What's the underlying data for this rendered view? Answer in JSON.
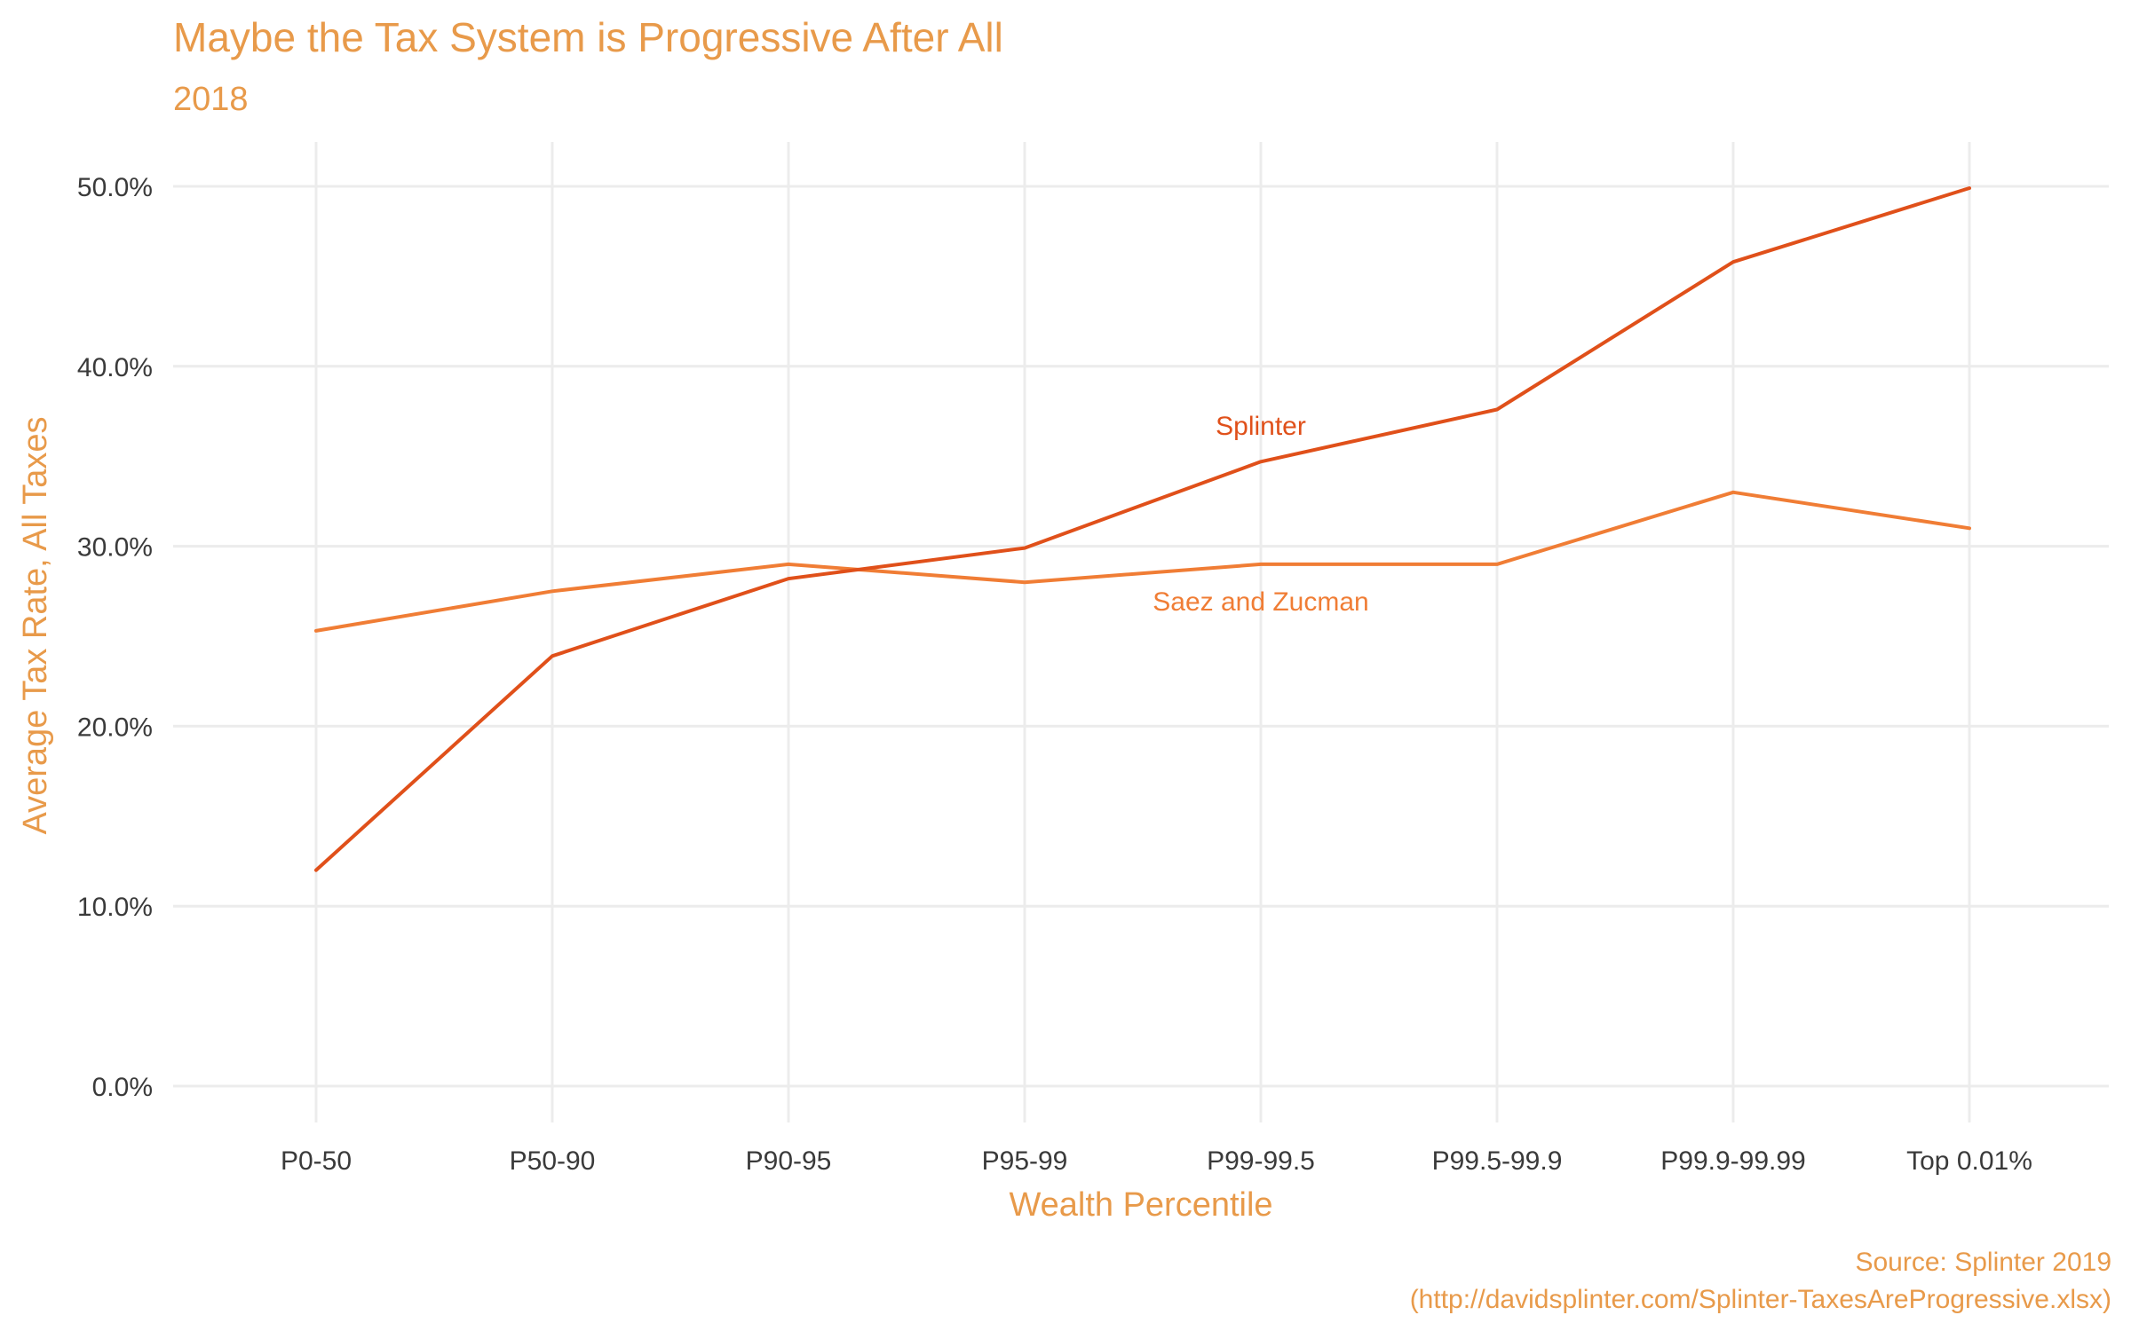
{
  "chart_data": {
    "type": "line",
    "title": "Maybe the Tax System is Progressive After All",
    "subtitle": "2018",
    "xlabel": "Wealth Percentile",
    "ylabel": "Average Tax Rate, All Taxes",
    "caption_line1": "Source: Splinter 2019",
    "caption_line2": "(http://davidsplinter.com/Splinter-TaxesAreProgressive.xlsx)",
    "categories": [
      "P0-50",
      "P50-90",
      "P90-95",
      "P95-99",
      "P99-99.5",
      "P99.5-99.9",
      "P99.9-99.99",
      "Top 0.01%"
    ],
    "ylim": [
      0,
      0.5
    ],
    "y_ticks": [
      0,
      0.1,
      0.2,
      0.3,
      0.4,
      0.5
    ],
    "y_tick_labels": [
      "0.0%",
      "10.0%",
      "20.0%",
      "30.0%",
      "40.0%",
      "50.0%"
    ],
    "grid": true,
    "legend": "none",
    "series": [
      {
        "name": "Splinter",
        "color": "#E0501A",
        "values": [
          0.12,
          0.239,
          0.282,
          0.299,
          0.347,
          0.376,
          0.458,
          0.499
        ]
      },
      {
        "name": "Saez and Zucman",
        "color": "#F07D35",
        "values": [
          0.253,
          0.275,
          0.29,
          0.28,
          0.29,
          0.29,
          0.33,
          0.31
        ]
      }
    ]
  },
  "colors": {
    "title": "#E89A4A",
    "tick_text": "#3a3a3a",
    "grid": "#ececec"
  }
}
